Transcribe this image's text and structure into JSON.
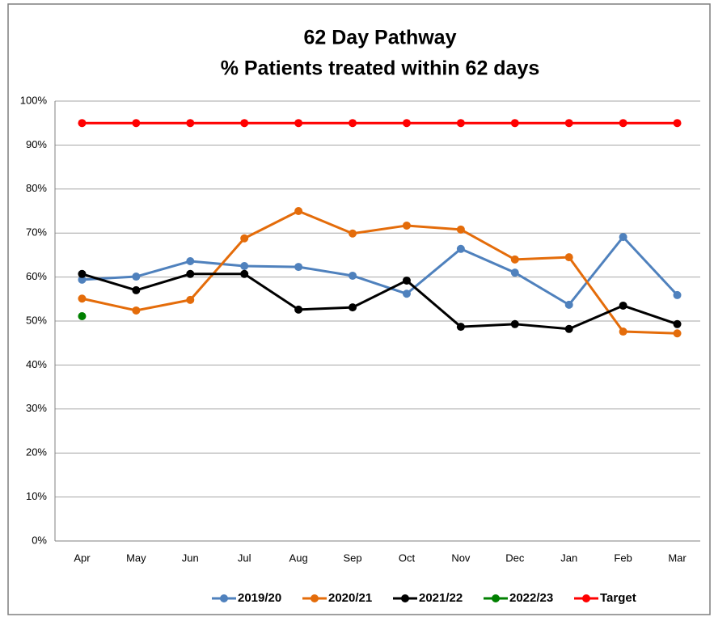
{
  "chart_data": {
    "type": "line",
    "title": "62 Day Pathway",
    "subtitle": "% Patients treated within 62 days",
    "categories": [
      "Apr",
      "May",
      "Jun",
      "Jul",
      "Aug",
      "Sep",
      "Oct",
      "Nov",
      "Dec",
      "Jan",
      "Feb",
      "Mar"
    ],
    "series": [
      {
        "name": "2019/20",
        "color": "#4f81bd",
        "values": [
          59.4,
          60.1,
          63.6,
          62.5,
          62.3,
          60.3,
          56.2,
          66.4,
          61.0,
          53.7,
          69.1,
          55.9
        ]
      },
      {
        "name": "2020/21",
        "color": "#e46c0a",
        "values": [
          55.1,
          52.4,
          54.8,
          68.8,
          75.0,
          69.9,
          71.7,
          70.8,
          64.0,
          64.5,
          47.6,
          47.2
        ]
      },
      {
        "name": "2021/22",
        "color": "#000000",
        "values": [
          60.7,
          57.0,
          60.7,
          60.7,
          52.6,
          53.1,
          59.2,
          48.7,
          49.3,
          48.2,
          53.5,
          49.3
        ]
      },
      {
        "name": "2022/23",
        "color": "#008000",
        "values": [
          51.1,
          null,
          null,
          null,
          null,
          null,
          null,
          null,
          null,
          null,
          null,
          null
        ]
      },
      {
        "name": "Target",
        "color": "#ff0000",
        "values": [
          95,
          95,
          95,
          95,
          95,
          95,
          95,
          95,
          95,
          95,
          95,
          95
        ]
      }
    ],
    "ylim": [
      0,
      100
    ],
    "yticks": [
      {
        "value": 0,
        "label": "0%"
      },
      {
        "value": 10,
        "label": "10%"
      },
      {
        "value": 20,
        "label": "20%"
      },
      {
        "value": 30,
        "label": "30%"
      },
      {
        "value": 40,
        "label": "40%"
      },
      {
        "value": 50,
        "label": "50%"
      },
      {
        "value": 60,
        "label": "60%"
      },
      {
        "value": 70,
        "label": "70%"
      },
      {
        "value": 80,
        "label": "80%"
      },
      {
        "value": 90,
        "label": "90%"
      },
      {
        "value": 100,
        "label": "100%"
      }
    ],
    "grid": true,
    "legend": "bottom"
  }
}
